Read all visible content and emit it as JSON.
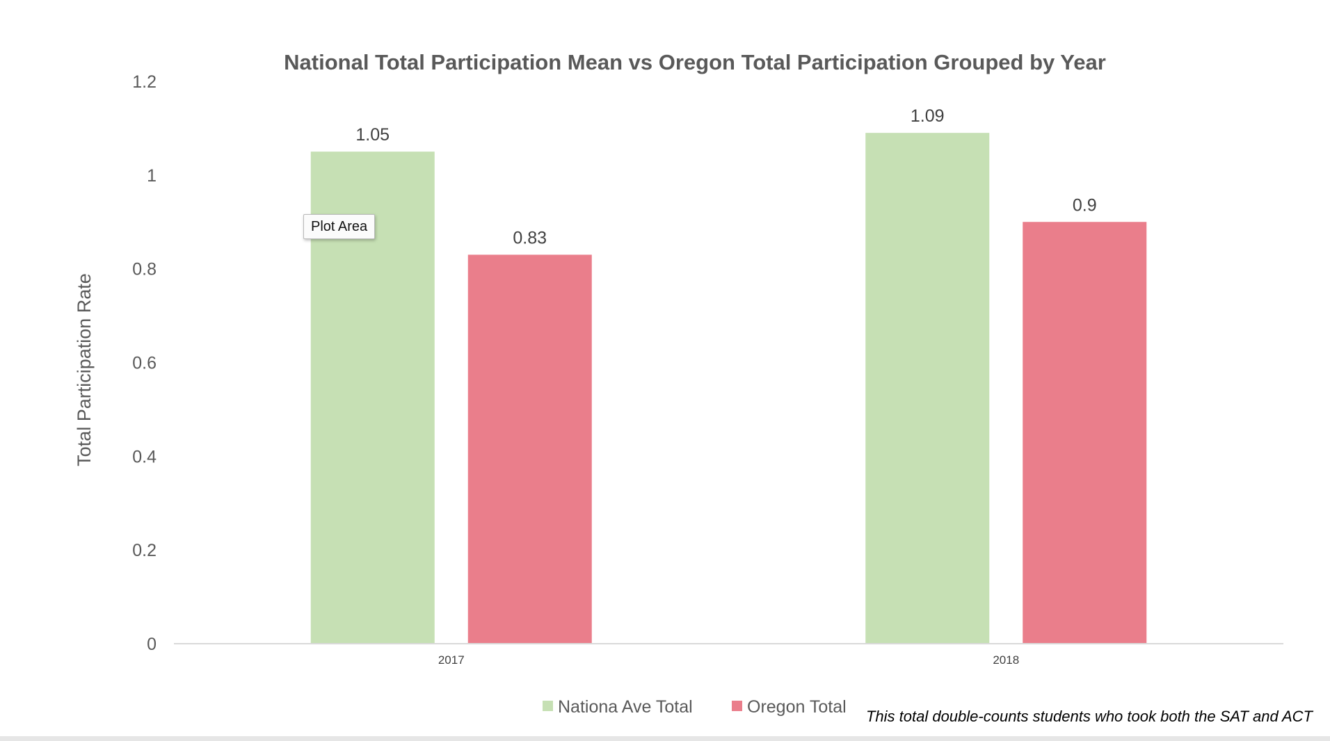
{
  "chart_data": {
    "type": "bar",
    "title": "National Total Participation Mean vs Oregon Total Participation Grouped by Year",
    "xlabel": "",
    "ylabel": "Total Participation Rate",
    "categories": [
      "2017",
      "2018"
    ],
    "series": [
      {
        "name": "Nationa Ave Total",
        "values": [
          1.05,
          1.09
        ],
        "color": "#c6e0b4"
      },
      {
        "name": "Oregon Total",
        "values": [
          0.83,
          0.9
        ],
        "color": "#ea7e8b"
      }
    ],
    "ylim": [
      0,
      1.2
    ],
    "yticks": [
      "0",
      "0.2",
      "0.4",
      "0.6",
      "0.8",
      "1",
      "1.2"
    ],
    "data_labels": [
      [
        "1.05",
        "1.09"
      ],
      [
        "0.83",
        "0.9"
      ]
    ],
    "grid": false,
    "legend_position": "bottom"
  },
  "tooltip": {
    "text": "Plot Area"
  },
  "footnote": "This total double-counts students who took both the SAT and ACT"
}
